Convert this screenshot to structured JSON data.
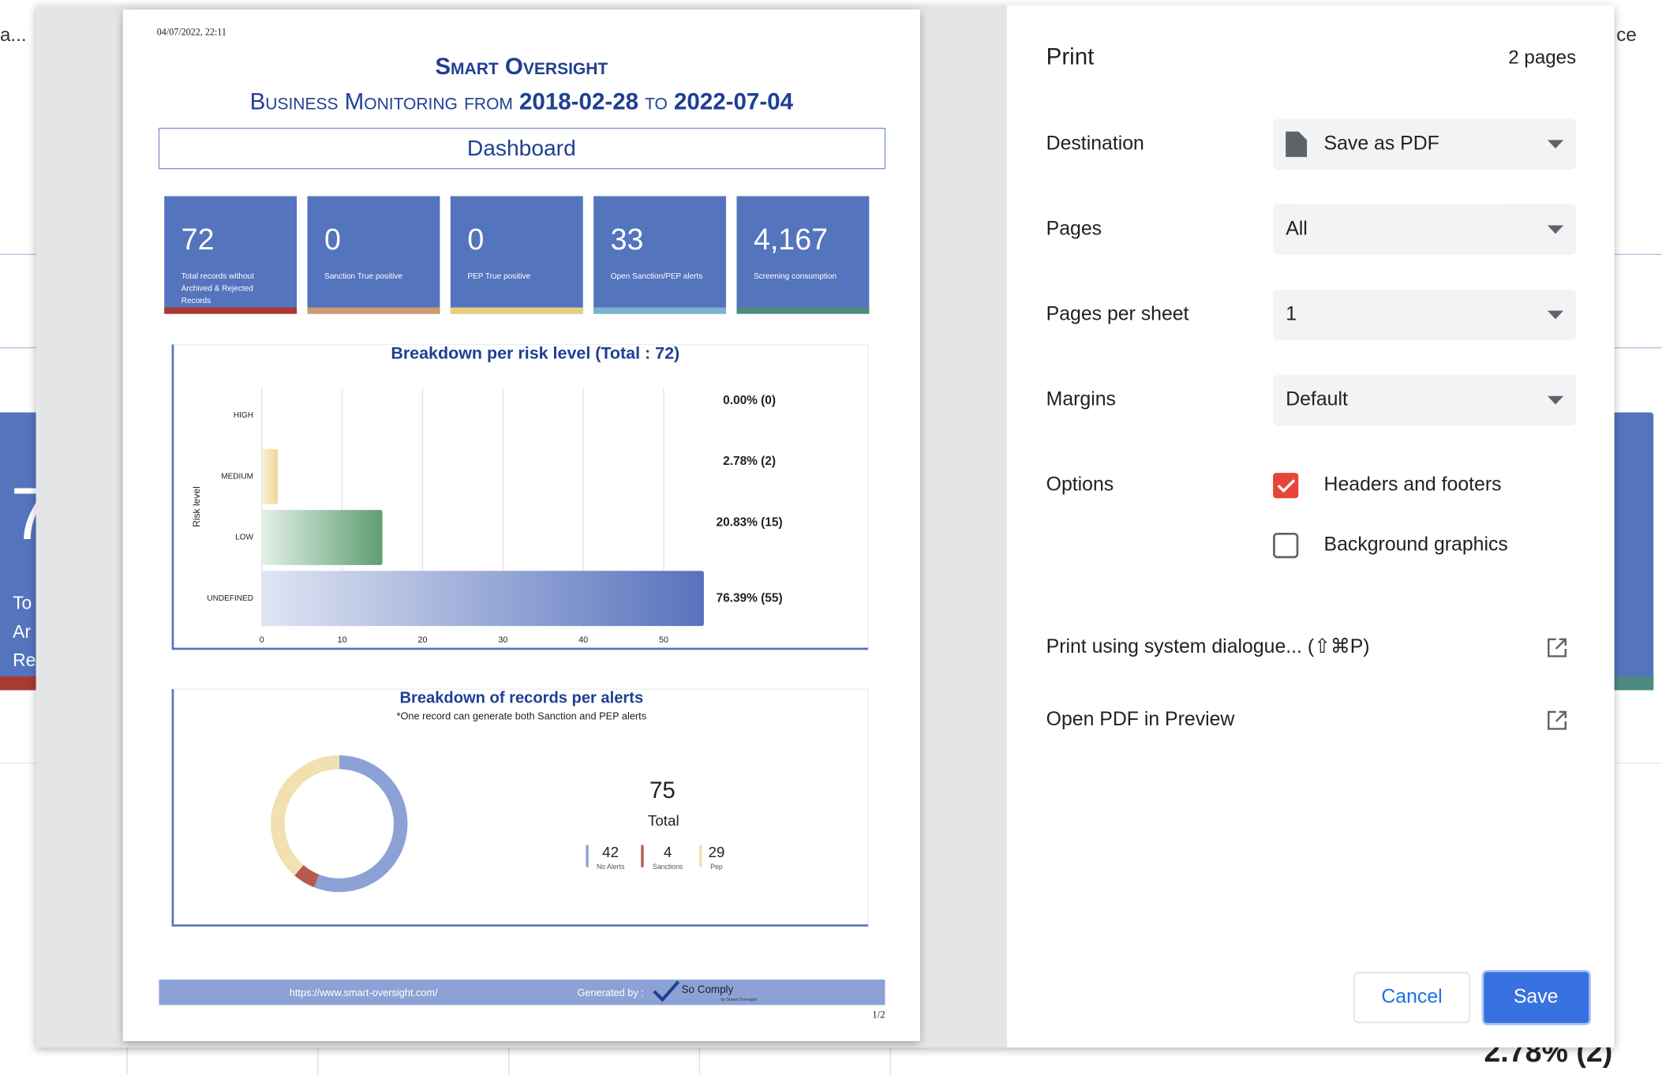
{
  "background": {
    "left_text": "a...",
    "right_text": "ce",
    "big_digit": "7",
    "left_lines": [
      "To",
      "Ar",
      "Re"
    ],
    "right_fragment": ")",
    "bottom_text": "2.78% (2)"
  },
  "document": {
    "timestamp": "04/07/2022, 22:11",
    "title": "Smart Oversight",
    "subtitle_prefix": "Business Monitoring from",
    "date_from": "2018-02-28",
    "subtitle_to": "to",
    "date_to": "2022-07-04",
    "section": "Dashboard",
    "kpis": [
      {
        "value": "72",
        "label": [
          "Total records without",
          "Archived & Rejected",
          "Records"
        ],
        "color": "#a83a32"
      },
      {
        "value": "0",
        "label": [
          "Sanction True positive"
        ],
        "color": "#cf9a6c"
      },
      {
        "value": "0",
        "label": [
          "PEP True positive"
        ],
        "color": "#e6cf7e"
      },
      {
        "value": "33",
        "label": [
          "Open Sanction/PEP alerts"
        ],
        "color": "#7bb3cc"
      },
      {
        "value": "4,167",
        "label": [
          "Screening consumption"
        ],
        "color": "#4d8a80"
      }
    ],
    "risk_chart": {
      "type": "bar",
      "title": "Breakdown per risk level (Total : 72)",
      "y_label": "Risk level",
      "categories": [
        "HIGH",
        "MEDIUM",
        "LOW",
        "UNDEFINED"
      ],
      "values": [
        0,
        2,
        15,
        55
      ],
      "value_labels": [
        "0.00% (0)",
        "2.78% (2)",
        "20.83% (15)",
        "76.39% (55)"
      ],
      "colors": [
        [
          "#f6d7d7",
          "#c0504d"
        ],
        [
          "#fbf1d5",
          "#efd797"
        ],
        [
          "#e3f0e8",
          "#5e9d71"
        ],
        [
          "#dfe5f3",
          "#5872bd"
        ]
      ],
      "xlim": [
        0,
        60
      ],
      "xticks": [
        0,
        10,
        20,
        30,
        40,
        50
      ]
    },
    "alerts_chart": {
      "type": "donut",
      "title": "Breakdown of records per alerts",
      "note": "*One record can generate both Sanction and PEP alerts",
      "total": 75,
      "total_label": "Total",
      "categories": [
        "No Alerts",
        "Sanctions",
        "Pep"
      ],
      "values": [
        42,
        4,
        29
      ],
      "colors": [
        "#8ca2d6",
        "#b65a4c",
        "#f1e0b0"
      ]
    },
    "footer": {
      "url": "https://www.smart-oversight.com/",
      "generated_by": "Generated by :",
      "logo": "So Comply",
      "logo_sub": "by Smart Oversight"
    },
    "page_number": "1/2"
  },
  "dialog": {
    "title": "Print",
    "pages_count": "2 pages",
    "rows": [
      {
        "label": "Destination",
        "value": "Save as PDF"
      },
      {
        "label": "Pages",
        "value": "All"
      },
      {
        "label": "Pages per sheet",
        "value": "1"
      },
      {
        "label": "Margins",
        "value": "Default"
      }
    ],
    "options_label": "Options",
    "options": [
      {
        "label": "Headers and footers",
        "checked": true
      },
      {
        "label": "Background graphics",
        "checked": false
      }
    ],
    "links": [
      "Print using system dialogue... (⇧⌘P)",
      "Open PDF in Preview"
    ],
    "cancel": "Cancel",
    "save": "Save"
  }
}
